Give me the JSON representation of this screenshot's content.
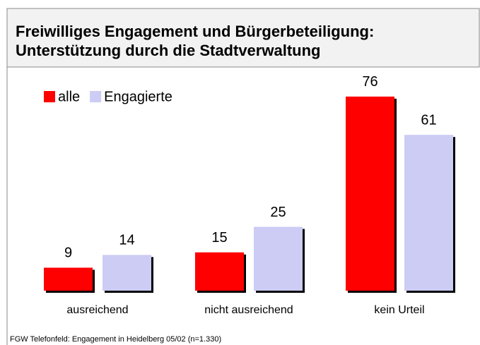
{
  "chart_data": {
    "type": "bar",
    "title": [
      "Freiwilliges Engagement und Bürgerbeteiligung:",
      "Unterstützung durch die Stadtverwaltung"
    ],
    "categories": [
      "ausreichend",
      "nicht ausreichend",
      "kein Urteil"
    ],
    "series": [
      {
        "name": "alle",
        "color": "#ff0000",
        "values": [
          9,
          15,
          76
        ]
      },
      {
        "name": "Engagierte",
        "color": "#ccccf5",
        "values": [
          14,
          25,
          61
        ]
      }
    ],
    "legend": "top-left",
    "source": "FGW Telefonfeld: Engagement in Heidelberg 05/02 (n=1.330)"
  }
}
